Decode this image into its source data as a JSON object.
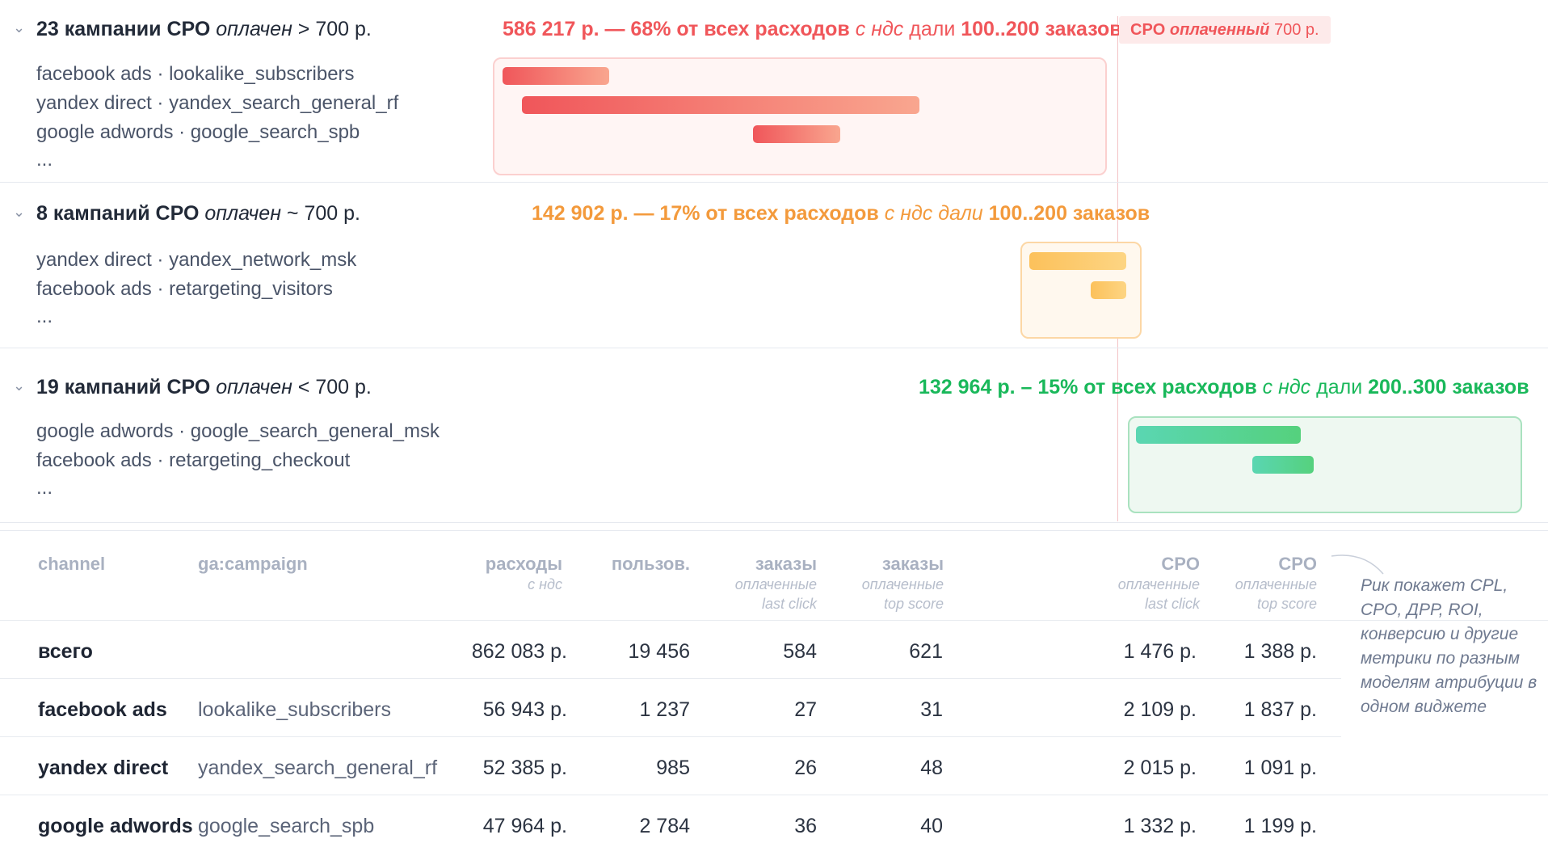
{
  "groups": [
    {
      "chevron": "chevron-down-icon",
      "count": "23 кампании СРО",
      "status": "оплачен",
      "cond": "> 700 р.",
      "summary": {
        "amount": "586 217 р. — 68% от всех расходов",
        "vat": "с ндс",
        "gave": "дали",
        "orders": "100..200 заказов"
      },
      "tag": {
        "label": "CPO",
        "status": "оплаченный",
        "value": "700 р."
      },
      "campaigns": [
        "facebook ads · lookalike_subscribers",
        "yandex direct · yandex_search_general_rf",
        "google adwords · google_search_spb",
        "..."
      ],
      "color": "#f0565a"
    },
    {
      "chevron": "chevron-down-icon",
      "count": "8 кампаний СРО",
      "status": "оплачен",
      "cond": "~ 700 р.",
      "summary": {
        "amount": "142 902 р. — 17% от всех расходов",
        "vat": "с ндс",
        "gave": "дали",
        "orders": "100..200 заказов"
      },
      "campaigns": [
        "yandex direct · yandex_network_msk",
        "facebook ads · retargeting_visitors",
        "..."
      ],
      "color": "#f39a3c"
    },
    {
      "chevron": "chevron-down-icon",
      "count": "19 кампаний СРО",
      "status": "оплачен",
      "cond": "< 700 р.",
      "summary": {
        "amount": "132 964 р. – 15% от всех расходов",
        "vat": "с ндс",
        "gave": "дали",
        "orders": "200..300 заказов"
      },
      "campaigns": [
        "google adwords · google_search_general_msk",
        "facebook ads · retargeting_checkout",
        "..."
      ],
      "color": "#19b85a"
    }
  ],
  "table": {
    "headers": {
      "channel": "channel",
      "campaign": "ga:campaign",
      "spend": "расходы",
      "spend_sub": "с ндс",
      "users": "пользов.",
      "orders_lc": "заказы",
      "orders_lc_sub1": "оплаченные",
      "orders_lc_sub2": "last click",
      "orders_ts": "заказы",
      "orders_ts_sub1": "оплаченные",
      "orders_ts_sub2": "top score",
      "cpo_lc": "CPO",
      "cpo_lc_sub1": "оплаченные",
      "cpo_lc_sub2": "last click",
      "cpo_ts": "CPO",
      "cpo_ts_sub1": "оплаченные",
      "cpo_ts_sub2": "top score"
    },
    "rows": [
      {
        "channel": "всего",
        "campaign": "",
        "spend": "862 083 р.",
        "users": "19 456",
        "orders_lc": "584",
        "orders_ts": "621",
        "cpo_lc": "1 476 р.",
        "cpo_ts": "1 388 р."
      },
      {
        "channel": "facebook ads",
        "campaign": "lookalike_subscribers",
        "spend": "56 943 р.",
        "users": "1 237",
        "orders_lc": "27",
        "orders_ts": "31",
        "cpo_lc": "2 109 р.",
        "cpo_ts": "1 837 р."
      },
      {
        "channel": "yandex direct",
        "campaign": "yandex_search_general_rf",
        "spend": "52 385 р.",
        "users": "985",
        "orders_lc": "26",
        "orders_ts": "48",
        "cpo_lc": "2 015 р.",
        "cpo_ts": "1 091 р."
      },
      {
        "channel": "google adwords",
        "campaign": "google_search_spb",
        "spend": "47 964 р.",
        "users": "2 784",
        "orders_lc": "36",
        "orders_ts": "40",
        "cpo_lc": "1 332 р.",
        "cpo_ts": "1 199 р."
      }
    ]
  },
  "note": "Рик покажет CPL, CPO, ДРР, ROI, конверсию и другие метрики по разным моделям атрибуции в одном виджете"
}
